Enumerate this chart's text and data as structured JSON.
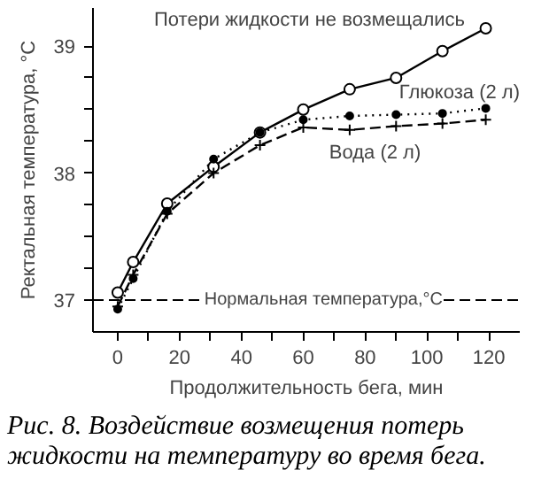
{
  "chart_data": {
    "type": "line",
    "xlabel": "Продолжительность бега, мин",
    "ylabel": "Ректальная температура, °С",
    "x": [
      0,
      5,
      16,
      31,
      46,
      60,
      75,
      90,
      105,
      119
    ],
    "series": [
      {
        "name": "Потери жидкости не возмещались",
        "color": "#000000",
        "marker": "circle",
        "line_style": "solid",
        "values": [
          37.06,
          37.3,
          37.76,
          38.05,
          38.32,
          38.5,
          38.66,
          38.75,
          38.96,
          39.14
        ]
      },
      {
        "name": "Глюкоза (2 л)",
        "color": "#000000",
        "marker": "circle",
        "line_style": "dotted",
        "values": [
          36.93,
          37.17,
          37.7,
          38.11,
          38.32,
          38.42,
          38.45,
          38.46,
          38.47,
          38.51
        ]
      },
      {
        "name": "Вода (2 л)",
        "color": "#000000",
        "marker": "cross",
        "line_style": "dashed",
        "values": [
          36.95,
          37.2,
          37.68,
          38.0,
          38.22,
          38.36,
          38.34,
          38.37,
          38.39,
          38.42
        ]
      }
    ],
    "xlim": [
      -8,
      130
    ],
    "ylim": [
      36.75,
      39.3
    ],
    "xticks": [
      0,
      {
        "value": 10,
        "label": null
      },
      20,
      {
        "value": 30,
        "label": null
      },
      40,
      {
        "value": 50,
        "label": null
      },
      60,
      {
        "value": 70,
        "label": null
      },
      80,
      {
        "value": 90,
        "label": null
      },
      100,
      {
        "value": 110,
        "label": null
      },
      120
    ],
    "yticks": [
      37,
      {
        "value": 37.25,
        "label": null
      },
      {
        "value": 37.5,
        "label": null
      },
      {
        "value": 37.75,
        "label": null
      },
      38,
      {
        "value": 38.25,
        "label": null
      },
      {
        "value": 38.5,
        "label": null
      },
      {
        "value": 38.75,
        "label": null
      },
      39
    ],
    "ref_lines": [
      {
        "axis": "y",
        "value": 37,
        "label": "Нормальная температура,°С",
        "line_style": "dashed"
      }
    ],
    "annotations": [
      "Рис. 8. Воздействие возмещения потерь жидкости на температуру во время бега."
    ],
    "grid": false
  }
}
